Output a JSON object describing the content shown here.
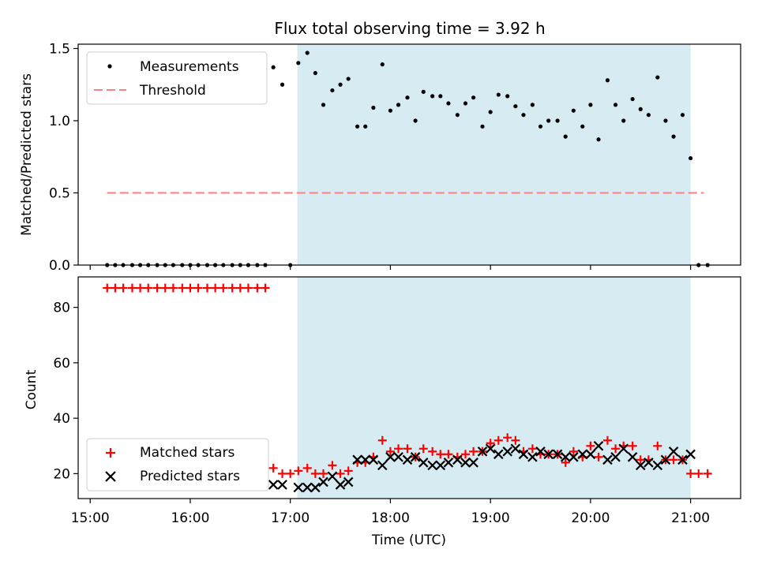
{
  "chart_data": [
    {
      "type": "scatter",
      "title": "Flux total observing time = 3.92 h",
      "ylabel": "Matched/Predicted stars",
      "xlabel": "",
      "xlim": [
        14.88,
        21.5
      ],
      "ylim": [
        0.0,
        1.53
      ],
      "yticks": [
        0.0,
        0.5,
        1.0,
        1.5
      ],
      "ytick_labels": [
        "0.0",
        "0.5",
        "1.0",
        "1.5"
      ],
      "shaded_span": [
        17.07,
        21.0
      ],
      "threshold": {
        "value": 0.5,
        "x_range": [
          15.17,
          21.13
        ],
        "color": "#ff7f7f"
      },
      "legend": {
        "location": "upper-left",
        "entries": [
          "Measurements",
          "Threshold"
        ]
      },
      "series": [
        {
          "name": "Measurements",
          "color": "#000000",
          "x": [
            15.17,
            15.25,
            15.33,
            15.42,
            15.5,
            15.58,
            15.67,
            15.75,
            15.83,
            15.92,
            16.0,
            16.08,
            16.17,
            16.25,
            16.33,
            16.42,
            16.5,
            16.58,
            16.67,
            16.75,
            16.83,
            16.92,
            17.0,
            17.08,
            17.17,
            17.25,
            17.33,
            17.42,
            17.5,
            17.58,
            17.67,
            17.75,
            17.83,
            17.92,
            18.0,
            18.08,
            18.17,
            18.25,
            18.33,
            18.42,
            18.5,
            18.58,
            18.67,
            18.75,
            18.83,
            18.92,
            19.0,
            19.08,
            19.17,
            19.25,
            19.33,
            19.42,
            19.5,
            19.58,
            19.67,
            19.75,
            19.83,
            19.92,
            20.0,
            20.08,
            20.17,
            20.25,
            20.33,
            20.42,
            20.5,
            20.58,
            20.67,
            20.75,
            20.83,
            20.92,
            21.0,
            21.08,
            21.17
          ],
          "y": [
            0,
            0,
            0,
            0,
            0,
            0,
            0,
            0,
            0,
            0,
            0,
            0,
            0,
            0,
            0,
            0,
            0,
            0,
            0,
            0,
            1.37,
            1.25,
            0,
            1.4,
            1.47,
            1.33,
            1.11,
            1.21,
            1.25,
            1.29,
            0.96,
            0.96,
            1.09,
            1.39,
            1.07,
            1.11,
            1.16,
            1.0,
            1.2,
            1.17,
            1.17,
            1.12,
            1.04,
            1.12,
            1.16,
            0.96,
            1.06,
            1.18,
            1.17,
            1.1,
            1.04,
            1.11,
            0.96,
            1.0,
            1.0,
            0.89,
            1.07,
            0.96,
            1.11,
            0.87,
            1.28,
            1.11,
            1.0,
            1.15,
            1.08,
            1.04,
            1.3,
            1.0,
            0.89,
            1.04,
            0.74,
            0,
            0
          ]
        }
      ]
    },
    {
      "type": "scatter",
      "title": "",
      "ylabel": "Count",
      "xlabel": "Time (UTC)",
      "xlim": [
        14.88,
        21.5
      ],
      "ylim": [
        11.0,
        91.0
      ],
      "yticks": [
        20,
        40,
        60,
        80
      ],
      "ytick_labels": [
        "20",
        "40",
        "60",
        "80"
      ],
      "xticks": [
        15,
        16,
        17,
        18,
        19,
        20,
        21
      ],
      "xtick_labels": [
        "15:00",
        "16:00",
        "17:00",
        "18:00",
        "19:00",
        "20:00",
        "21:00"
      ],
      "shaded_span": [
        17.07,
        21.0
      ],
      "legend": {
        "location": "lower-left",
        "entries": [
          "Matched stars",
          "Predicted stars"
        ]
      },
      "series": [
        {
          "name": "Matched stars",
          "marker": "plus",
          "color": "#ff0000",
          "x": [
            15.17,
            15.25,
            15.33,
            15.42,
            15.5,
            15.58,
            15.67,
            15.75,
            15.83,
            15.92,
            16.0,
            16.08,
            16.17,
            16.25,
            16.33,
            16.42,
            16.5,
            16.58,
            16.67,
            16.75,
            16.83,
            16.92,
            17.0,
            17.08,
            17.17,
            17.25,
            17.33,
            17.42,
            17.5,
            17.58,
            17.67,
            17.75,
            17.83,
            17.92,
            18.0,
            18.08,
            18.17,
            18.25,
            18.33,
            18.42,
            18.5,
            18.58,
            18.67,
            18.75,
            18.83,
            18.92,
            19.0,
            19.08,
            19.17,
            19.25,
            19.33,
            19.42,
            19.5,
            19.58,
            19.67,
            19.75,
            19.83,
            19.92,
            20.0,
            20.08,
            20.17,
            20.25,
            20.33,
            20.42,
            20.5,
            20.58,
            20.67,
            20.75,
            20.83,
            20.92,
            21.0,
            21.08,
            21.17
          ],
          "y": [
            87,
            87,
            87,
            87,
            87,
            87,
            87,
            87,
            87,
            87,
            87,
            87,
            87,
            87,
            87,
            87,
            87,
            87,
            87,
            87,
            22,
            20,
            20,
            21,
            22,
            20,
            20,
            23,
            20,
            21,
            24,
            24,
            26,
            32,
            28,
            29,
            29,
            26,
            29,
            28,
            27,
            27,
            26,
            27,
            28,
            28,
            31,
            32,
            33,
            32,
            28,
            29,
            27,
            27,
            27,
            24,
            28,
            26,
            30,
            26,
            32,
            29,
            30,
            30,
            25,
            25,
            30,
            25,
            25,
            25,
            20,
            20,
            20
          ]
        },
        {
          "name": "Predicted stars",
          "marker": "x",
          "color": "#000000",
          "x": [
            16.83,
            16.92,
            17.08,
            17.17,
            17.25,
            17.33,
            17.42,
            17.5,
            17.58,
            17.67,
            17.75,
            17.83,
            17.92,
            18.0,
            18.08,
            18.17,
            18.25,
            18.33,
            18.42,
            18.5,
            18.58,
            18.67,
            18.75,
            18.83,
            18.92,
            19.0,
            19.08,
            19.17,
            19.25,
            19.33,
            19.42,
            19.5,
            19.58,
            19.67,
            19.75,
            19.83,
            19.92,
            20.0,
            20.08,
            20.17,
            20.25,
            20.33,
            20.42,
            20.5,
            20.58,
            20.67,
            20.75,
            20.83,
            20.92,
            21.0
          ],
          "y": [
            16,
            16,
            15,
            15,
            15,
            17,
            19,
            16,
            17,
            25,
            25,
            25,
            23,
            26,
            26,
            25,
            26,
            24,
            23,
            23,
            24,
            25,
            24,
            24,
            28,
            29,
            27,
            28,
            29,
            27,
            26,
            28,
            27,
            27,
            26,
            26,
            27,
            27,
            30,
            25,
            26,
            29,
            26,
            23,
            24,
            23,
            25,
            28,
            25,
            27
          ]
        }
      ]
    }
  ]
}
